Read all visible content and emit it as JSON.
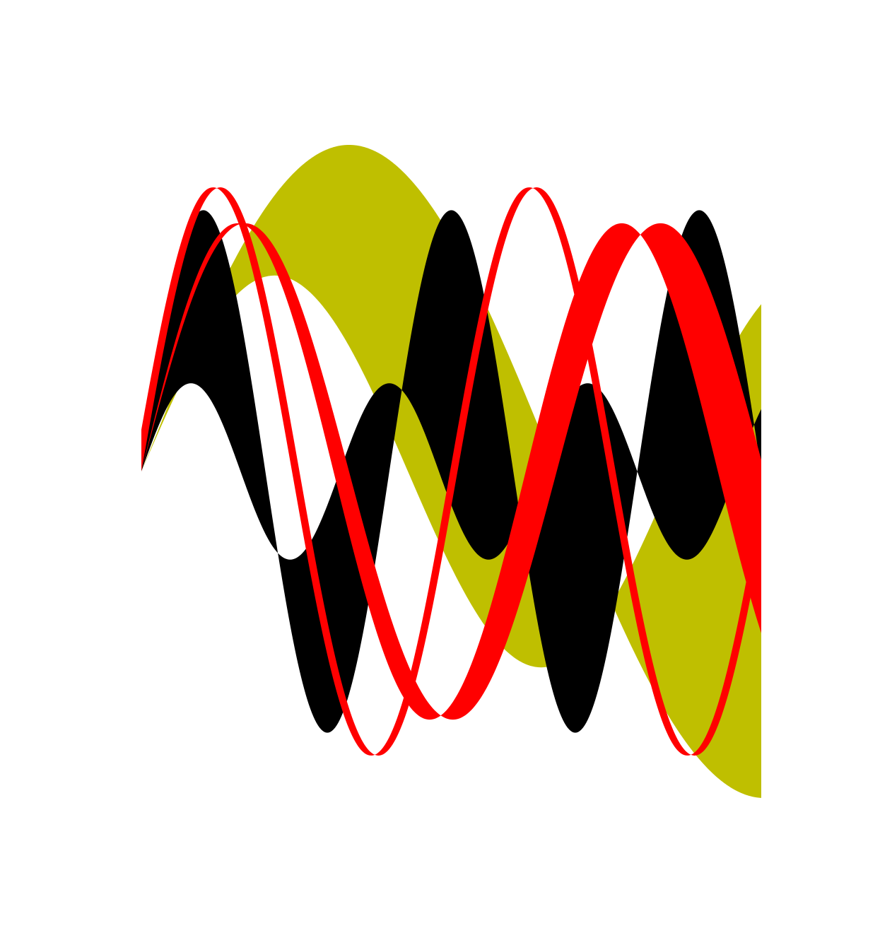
{
  "chart_data": {
    "type": "area",
    "title": "",
    "xlabel": "",
    "ylabel": "",
    "xlim": [
      0,
      1
    ],
    "ylim": [
      -1,
      1
    ],
    "grid": false,
    "axes_visible": false,
    "series": [
      {
        "band": "yellow-band",
        "color": "#bfbf00",
        "upper": {
          "amp": 1.0,
          "period": 1.34,
          "phase": 0.0
        },
        "lower": {
          "amp": 0.6,
          "period": 0.86,
          "phase": 0.0
        }
      },
      {
        "band": "black-band",
        "color": "#000000",
        "upper": {
          "amp": 0.8,
          "period": 0.4,
          "phase": 0.0
        },
        "lower": {
          "amp": 0.27,
          "period": 0.32,
          "phase": 0.0
        }
      },
      {
        "band": "red-outline-band",
        "color": "#ff0000",
        "upper": {
          "amp": 0.87,
          "period": 0.51,
          "phase": 0.0
        },
        "lower": {
          "amp": 0.87,
          "period": 0.51,
          "phase": -0.012
        }
      },
      {
        "band": "red-band",
        "color": "#ff0000",
        "upper": {
          "amp": 0.76,
          "period": 0.67,
          "phase": 0.0
        },
        "lower": {
          "amp": 0.76,
          "period": 0.62,
          "phase": 0.0
        }
      }
    ]
  }
}
